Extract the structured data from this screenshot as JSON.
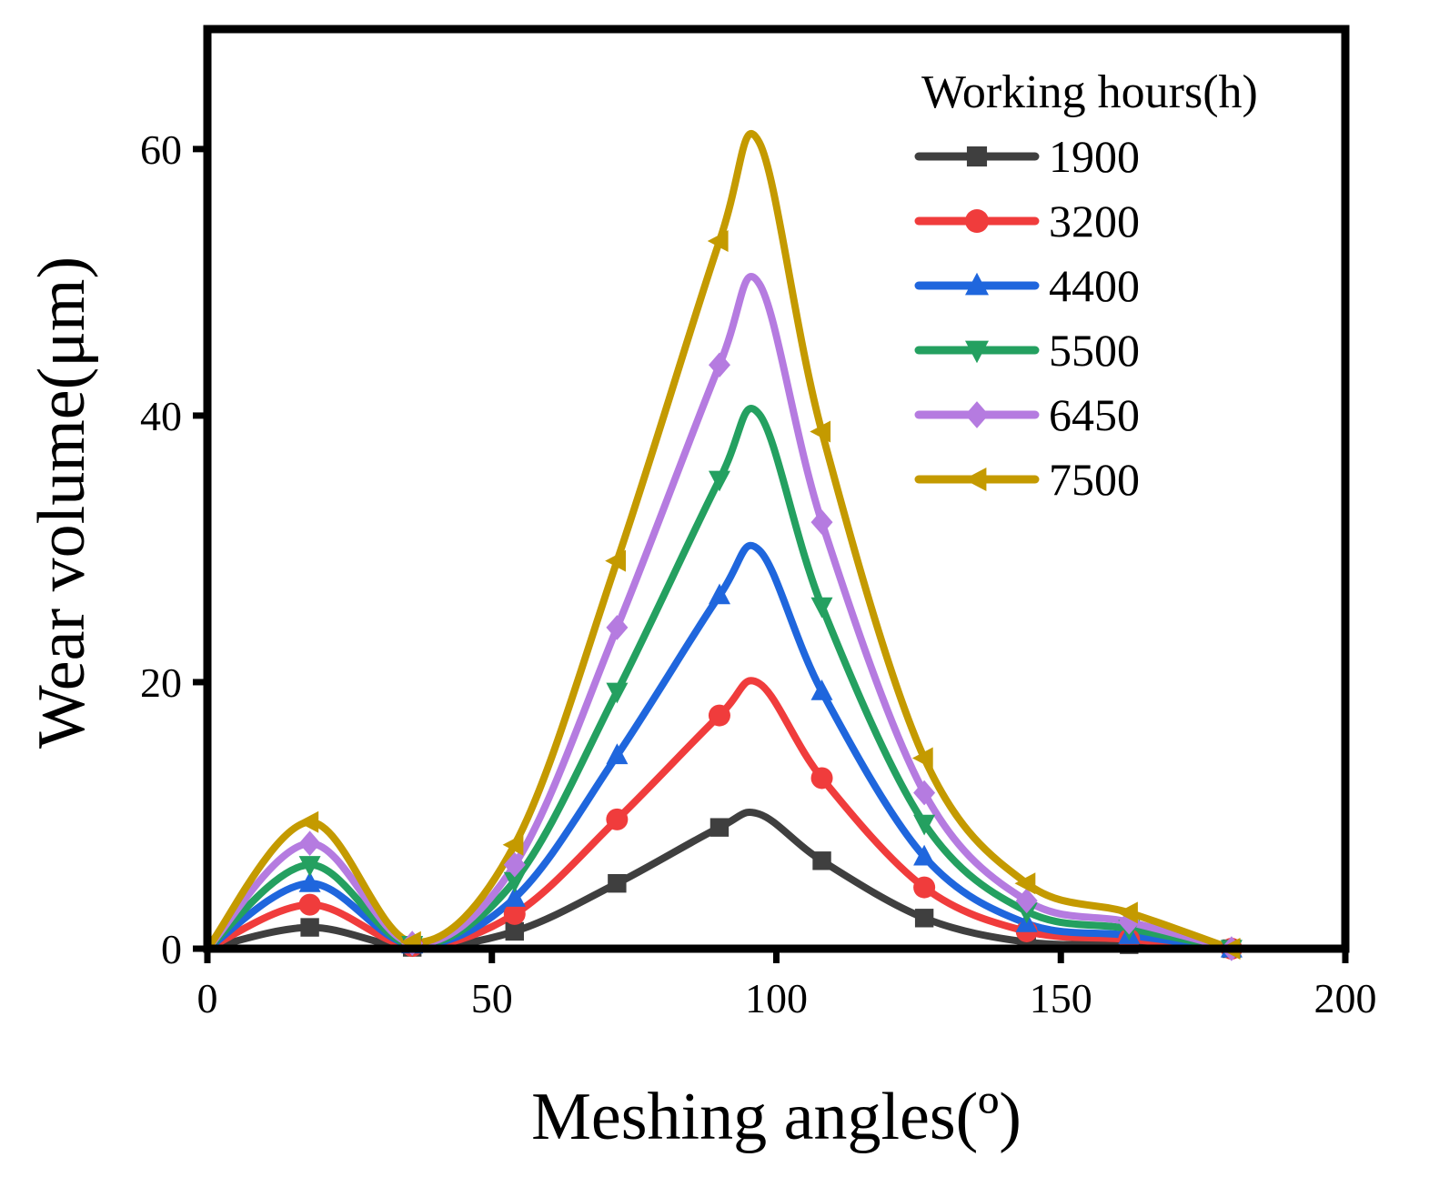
{
  "chart_data": {
    "type": "line",
    "title": "",
    "xlabel": "Meshing angles(º)",
    "ylabel": "Wear volume(μm)",
    "xlim": [
      0,
      200
    ],
    "ylim": [
      0,
      69
    ],
    "xticks": [
      0,
      50,
      100,
      150,
      200
    ],
    "yticks": [
      0,
      20,
      40,
      60
    ],
    "xtick_labels": [
      "0",
      "50",
      "100",
      "150",
      "200"
    ],
    "ytick_labels": [
      "0",
      "20",
      "40",
      "60"
    ],
    "grid": false,
    "legend": {
      "title": "Working hours(h)",
      "placement": "top-right"
    },
    "x": [
      0,
      18,
      36,
      54,
      72,
      90,
      97,
      108,
      126,
      144,
      162,
      180
    ],
    "series": [
      {
        "name": "1900",
        "color": "#3f3f3f",
        "marker": "square",
        "values": [
          0,
          1.6,
          0.1,
          1.3,
          4.9,
          9.1,
          10.1,
          6.6,
          2.3,
          0.5,
          0.3,
          0
        ]
      },
      {
        "name": "3200",
        "color": "#f03c3c",
        "marker": "circle",
        "values": [
          0,
          3.3,
          0.2,
          2.6,
          9.7,
          17.5,
          19.9,
          12.8,
          4.6,
          1.3,
          0.7,
          0
        ]
      },
      {
        "name": "4400",
        "color": "#1f66dd",
        "marker": "triangle-up",
        "values": [
          0,
          4.9,
          0.3,
          3.8,
          14.5,
          26.5,
          29.9,
          19.3,
          6.9,
          1.9,
          1.0,
          0
        ]
      },
      {
        "name": "5500",
        "color": "#24a060",
        "marker": "triangle-down",
        "values": [
          0,
          6.3,
          0.3,
          5.1,
          19.3,
          35.2,
          40.1,
          25.7,
          9.4,
          2.8,
          1.5,
          0
        ]
      },
      {
        "name": "6450",
        "color": "#b57be0",
        "marker": "diamond",
        "values": [
          0,
          7.9,
          0.4,
          6.3,
          24.1,
          43.8,
          49.9,
          32.0,
          11.7,
          3.6,
          2.0,
          0
        ]
      },
      {
        "name": "7500",
        "color": "#c49a00",
        "marker": "triangle-left",
        "values": [
          0,
          9.5,
          0.5,
          7.8,
          29.1,
          53.1,
          60.5,
          38.8,
          14.3,
          4.9,
          2.7,
          0
        ]
      }
    ]
  }
}
